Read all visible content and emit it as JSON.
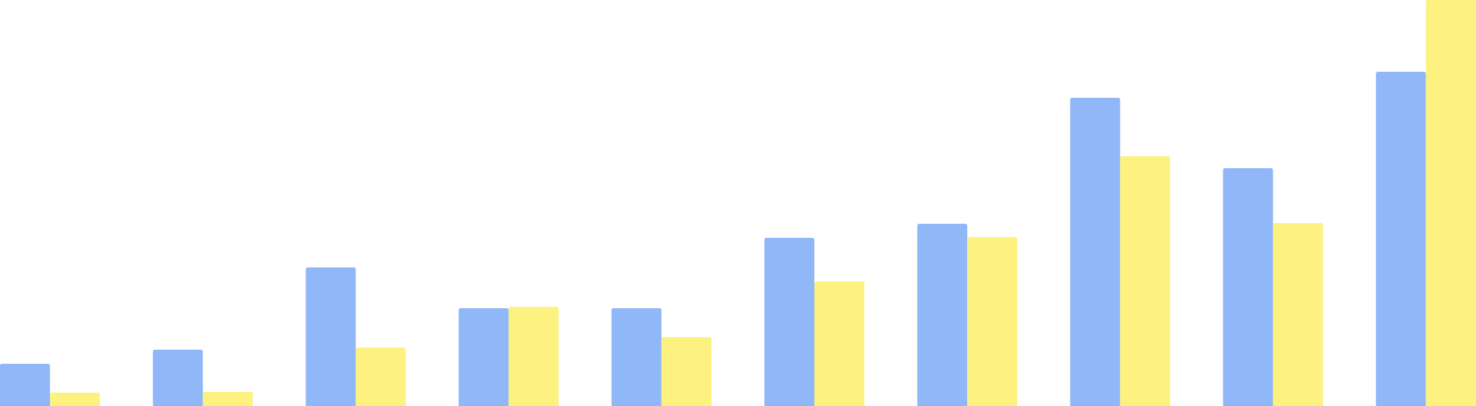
{
  "chart_data": {
    "type": "bar",
    "title": "",
    "xlabel": "",
    "ylabel": "",
    "grid": false,
    "legend": "none",
    "categories": [
      "",
      "",
      "",
      "",
      "",
      "",
      "",
      "",
      "",
      ""
    ],
    "series": [
      {
        "color": "#90b8f8",
        "values": [
          60,
          80,
          197,
          139,
          139,
          239,
          259,
          438,
          338,
          475
        ]
      },
      {
        "color": "#fdf17f",
        "values": [
          19,
          20,
          83,
          141,
          98,
          177,
          240,
          355,
          260,
          577
        ]
      }
    ],
    "ylim": [
      0,
      577
    ]
  }
}
